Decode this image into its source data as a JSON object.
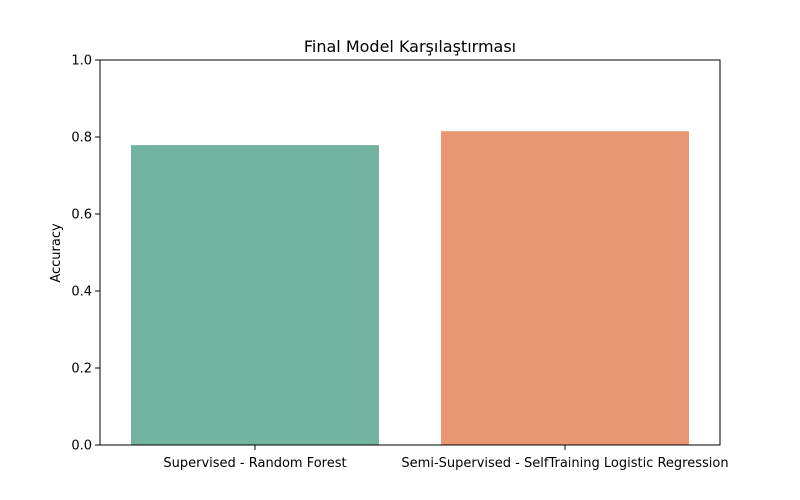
{
  "chart_data": {
    "type": "bar",
    "title": "Final Model Karşılaştırması",
    "xlabel": "",
    "ylabel": "Accuracy",
    "categories": [
      "Supervised - Random Forest",
      "Semi-Supervised - SelfTraining Logistic Regression"
    ],
    "values": [
      0.779,
      0.815
    ],
    "colors": [
      "#73b4a0",
      "#e99673"
    ],
    "ylim": [
      0,
      1.0
    ],
    "yticks": [
      "0.0",
      "0.2",
      "0.4",
      "0.6",
      "0.8",
      "1.0"
    ],
    "grid": false,
    "legend": "none"
  }
}
